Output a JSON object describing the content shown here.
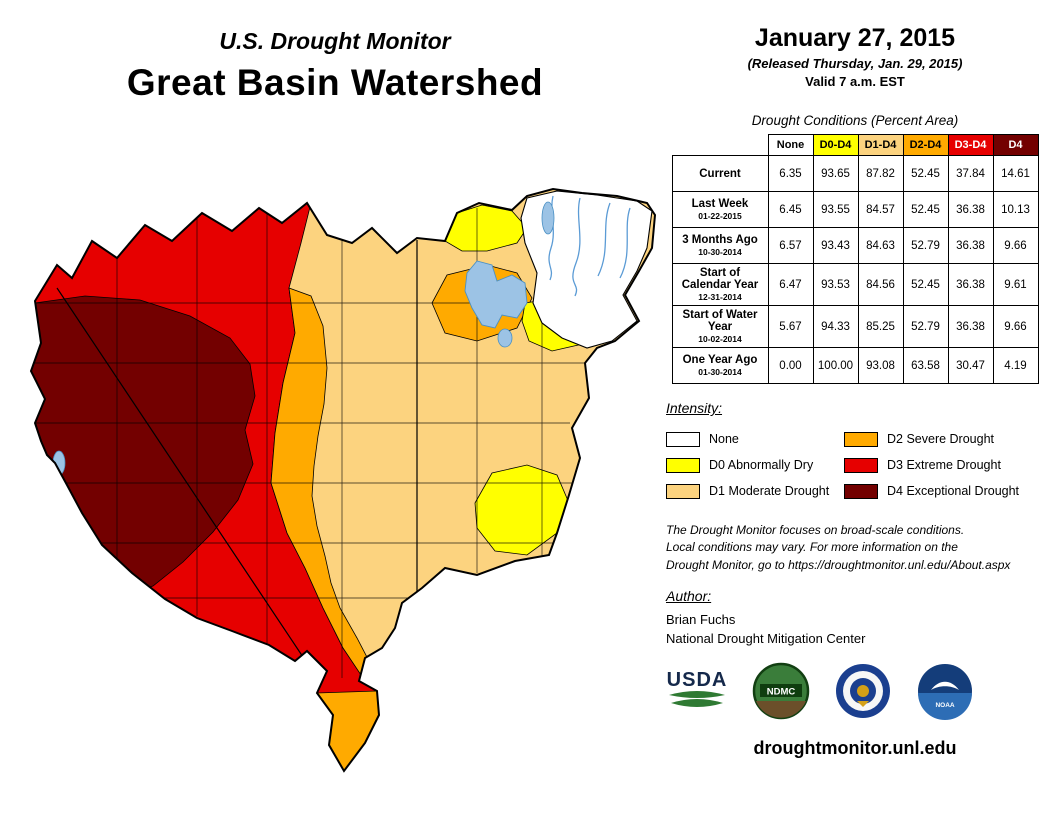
{
  "palette": {
    "none": "#FFFFFF",
    "d0": "#FFFF00",
    "d1": "#FCD37F",
    "d2": "#FFAA00",
    "d3": "#E60000",
    "d4": "#730000",
    "water": "#9CC3E5",
    "stream": "#5B9BD5"
  },
  "header": {
    "series_title": "U.S. Drought Monitor",
    "region_title": "Great Basin Watershed"
  },
  "date_block": {
    "date": "January 27, 2015",
    "released": "(Released Thursday, Jan. 29, 2015)",
    "valid": "Valid 7 a.m. EST"
  },
  "table": {
    "title": "Drought Conditions (Percent Area)",
    "columns": [
      {
        "label": "None",
        "key": "none",
        "text_color": "#000000"
      },
      {
        "label": "D0-D4",
        "key": "d0",
        "text_color": "#000000"
      },
      {
        "label": "D1-D4",
        "key": "d1",
        "text_color": "#000000"
      },
      {
        "label": "D2-D4",
        "key": "d2",
        "text_color": "#000000"
      },
      {
        "label": "D3-D4",
        "key": "d3",
        "text_color": "#FFFFFF"
      },
      {
        "label": "D4",
        "key": "d4",
        "text_color": "#FFFFFF"
      }
    ],
    "rows": [
      {
        "label": "Current",
        "date": "",
        "values": [
          "6.35",
          "93.65",
          "87.82",
          "52.45",
          "37.84",
          "14.61"
        ]
      },
      {
        "label": "Last Week",
        "date": "01-22-2015",
        "values": [
          "6.45",
          "93.55",
          "84.57",
          "52.45",
          "36.38",
          "10.13"
        ]
      },
      {
        "label": "3 Months Ago",
        "date": "10-30-2014",
        "values": [
          "6.57",
          "93.43",
          "84.63",
          "52.79",
          "36.38",
          "9.66"
        ]
      },
      {
        "label": "Start of Calendar Year",
        "date": "12-31-2014",
        "values": [
          "6.47",
          "93.53",
          "84.56",
          "52.45",
          "36.38",
          "9.61"
        ]
      },
      {
        "label": "Start of Water Year",
        "date": "10-02-2014",
        "values": [
          "5.67",
          "94.33",
          "85.25",
          "52.79",
          "36.38",
          "9.66"
        ]
      },
      {
        "label": "One Year Ago",
        "date": "01-30-2014",
        "values": [
          "0.00",
          "100.00",
          "93.08",
          "63.58",
          "30.47",
          "4.19"
        ]
      }
    ]
  },
  "legend": {
    "title": "Intensity:",
    "items": [
      {
        "label": "None",
        "key": "none"
      },
      {
        "label": "D0 Abnormally Dry",
        "key": "d0"
      },
      {
        "label": "D1 Moderate Drought",
        "key": "d1"
      },
      {
        "label": "D2 Severe Drought",
        "key": "d2"
      },
      {
        "label": "D3 Extreme Drought",
        "key": "d3"
      },
      {
        "label": "D4 Exceptional Drought",
        "key": "d4"
      }
    ]
  },
  "notes": {
    "disclaimer": "The Drought Monitor focuses on broad-scale conditions.\nLocal conditions may vary. For more information on the\nDrought Monitor, go to https://droughtmonitor.unl.edu/About.aspx"
  },
  "author": {
    "heading": "Author:",
    "name": "Brian Fuchs",
    "org": "National Drought Mitigation Center"
  },
  "logos": {
    "usda": "USDA",
    "ndmc": "NDMC",
    "noaa": "NOAA"
  },
  "footer": {
    "url": "droughtmonitor.unl.edu"
  }
}
